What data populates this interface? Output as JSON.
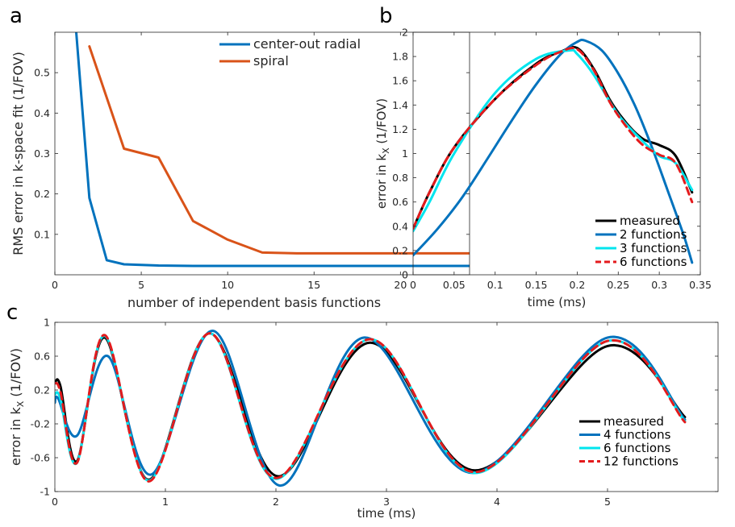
{
  "panels": [
    "a",
    "b",
    "c"
  ],
  "chart_data": [
    {
      "id": "a",
      "type": "line",
      "xlabel": "number of independent basis functions",
      "ylabel": "RMS error in k-space fit (1/FOV)",
      "xlim": [
        0,
        24
      ],
      "ylim": [
        0,
        0.6
      ],
      "xticks": [
        0,
        5,
        10,
        15,
        20
      ],
      "xticklabels": [
        "0",
        "5",
        "10",
        "15",
        "20"
      ],
      "yticks": [
        0.1,
        0.2,
        0.3,
        0.4,
        0.5
      ],
      "yticklabels": [
        "0.1",
        "0.2",
        "0.3",
        "0.4",
        "0.5"
      ],
      "grid": false,
      "legend_position": "top-right",
      "series": [
        {
          "name": "center-out radial",
          "color": "#0072bd",
          "x": [
            1.2,
            2,
            3,
            4,
            6,
            8,
            10,
            12,
            15,
            20,
            24
          ],
          "y": [
            0.62,
            0.19,
            0.036,
            0.026,
            0.023,
            0.022,
            0.022,
            0.022,
            0.022,
            0.022,
            0.022
          ]
        },
        {
          "name": "spiral",
          "color": "#d95319",
          "x": [
            2,
            4,
            6,
            8,
            10,
            12,
            14,
            16,
            20,
            24
          ],
          "y": [
            0.565,
            0.312,
            0.29,
            0.133,
            0.087,
            0.055,
            0.053,
            0.053,
            0.053,
            0.053
          ]
        }
      ]
    },
    {
      "id": "b",
      "type": "line",
      "xlabel": "time (ms)",
      "ylabel_main": "error in k",
      "ylabel_sub": "X",
      "ylabel_tail": " (1/FOV)",
      "xlim": [
        0,
        0.35
      ],
      "ylim": [
        0,
        2
      ],
      "xticks": [
        0,
        0.05,
        0.1,
        0.15,
        0.2,
        0.25,
        0.3,
        0.35
      ],
      "xticklabels": [
        "0",
        "0.05",
        "0.1",
        "0.15",
        "0.2",
        "0.25",
        "0.3",
        "0.35"
      ],
      "yticks": [
        0,
        0.2,
        0.4,
        0.6,
        0.8,
        1,
        1.2,
        1.4,
        1.6,
        1.8,
        2
      ],
      "yticklabels": [
        "0",
        "0.2",
        "0.4",
        "0.6",
        "0.8",
        "1",
        "1.2",
        "1.4",
        "1.6",
        "1.8",
        "2"
      ],
      "grid": false,
      "legend_position": "bottom-right",
      "series": [
        {
          "name": "measured",
          "color": "#000000",
          "dash": false,
          "x": [
            0,
            0.02,
            0.05,
            0.1,
            0.15,
            0.18,
            0.2,
            0.22,
            0.24,
            0.26,
            0.28,
            0.3,
            0.32,
            0.34
          ],
          "y": [
            0.38,
            0.68,
            1.05,
            1.45,
            1.74,
            1.84,
            1.87,
            1.7,
            1.44,
            1.25,
            1.12,
            1.07,
            0.98,
            0.68
          ]
        },
        {
          "name": "2 functions",
          "color": "#0072bd",
          "dash": false,
          "x": [
            0,
            0.03,
            0.06,
            0.09,
            0.12,
            0.15,
            0.18,
            0.2,
            0.21,
            0.23,
            0.25,
            0.27,
            0.29,
            0.31,
            0.33,
            0.34
          ],
          "y": [
            0.16,
            0.38,
            0.64,
            0.95,
            1.27,
            1.57,
            1.82,
            1.92,
            1.93,
            1.85,
            1.66,
            1.4,
            1.07,
            0.7,
            0.32,
            0.1
          ]
        },
        {
          "name": "3 functions",
          "color": "#00e5ee",
          "dash": false,
          "x": [
            0,
            0.02,
            0.05,
            0.1,
            0.15,
            0.19,
            0.2,
            0.22,
            0.25,
            0.28,
            0.3,
            0.32,
            0.34
          ],
          "y": [
            0.36,
            0.6,
            1.0,
            1.5,
            1.78,
            1.85,
            1.82,
            1.65,
            1.32,
            1.1,
            0.98,
            0.92,
            0.7
          ]
        },
        {
          "name": "6 functions",
          "color": "#e41a1c",
          "dash": true,
          "x": [
            0,
            0.02,
            0.05,
            0.1,
            0.15,
            0.18,
            0.2,
            0.22,
            0.24,
            0.26,
            0.28,
            0.3,
            0.32,
            0.34
          ],
          "y": [
            0.38,
            0.68,
            1.05,
            1.45,
            1.73,
            1.84,
            1.86,
            1.69,
            1.42,
            1.22,
            1.07,
            0.99,
            0.92,
            0.6
          ]
        }
      ]
    },
    {
      "id": "c",
      "type": "line",
      "xlabel": "time (ms)",
      "ylabel_main": "error in k",
      "ylabel_sub": "X",
      "ylabel_tail": " (1/FOV)",
      "xlim": [
        0,
        6
      ],
      "ylim": [
        -1,
        1
      ],
      "xticks": [
        0,
        1,
        2,
        3,
        4,
        5
      ],
      "xticklabels": [
        "0",
        "1",
        "2",
        "3",
        "4",
        "5"
      ],
      "yticks": [
        -1,
        -0.6,
        -0.2,
        0.2,
        0.6,
        1
      ],
      "yticklabels": [
        "-1",
        "-0.6",
        "-0.2",
        "0.2",
        "0.6",
        "1"
      ],
      "grid": false,
      "legend_position": "bottom-right",
      "series": [
        {
          "name": "measured",
          "color": "#000000",
          "dash": false,
          "x": [
            0,
            0.05,
            0.2,
            0.45,
            0.85,
            1.4,
            2.02,
            2.85,
            3.8,
            5.0,
            5.7
          ],
          "y": [
            0.28,
            0.25,
            -0.64,
            0.82,
            -0.86,
            0.87,
            -0.82,
            0.76,
            -0.75,
            0.72,
            -0.12
          ]
        },
        {
          "name": "4 functions",
          "color": "#0072bd",
          "dash": false,
          "x": [
            0,
            0.03,
            0.2,
            0.48,
            0.87,
            1.43,
            2.04,
            2.8,
            3.78,
            5.0,
            5.7
          ],
          "y": [
            0.05,
            0.1,
            -0.34,
            0.6,
            -0.8,
            0.9,
            -0.93,
            0.82,
            -0.78,
            0.82,
            -0.15
          ]
        },
        {
          "name": "6 functions",
          "color": "#00e5ee",
          "dash": false,
          "x": [
            0,
            0.05,
            0.2,
            0.45,
            0.85,
            1.4,
            2.0,
            2.85,
            3.8,
            5.0,
            5.7
          ],
          "y": [
            0.15,
            0.1,
            -0.66,
            0.84,
            -0.87,
            0.87,
            -0.85,
            0.8,
            -0.78,
            0.78,
            -0.17
          ]
        },
        {
          "name": "12 functions",
          "color": "#e41a1c",
          "dash": true,
          "x": [
            0,
            0.05,
            0.2,
            0.45,
            0.85,
            1.4,
            2.0,
            2.85,
            3.8,
            5.0,
            5.7
          ],
          "y": [
            0.28,
            0.18,
            -0.66,
            0.85,
            -0.88,
            0.87,
            -0.84,
            0.8,
            -0.77,
            0.78,
            -0.18
          ]
        }
      ]
    }
  ]
}
